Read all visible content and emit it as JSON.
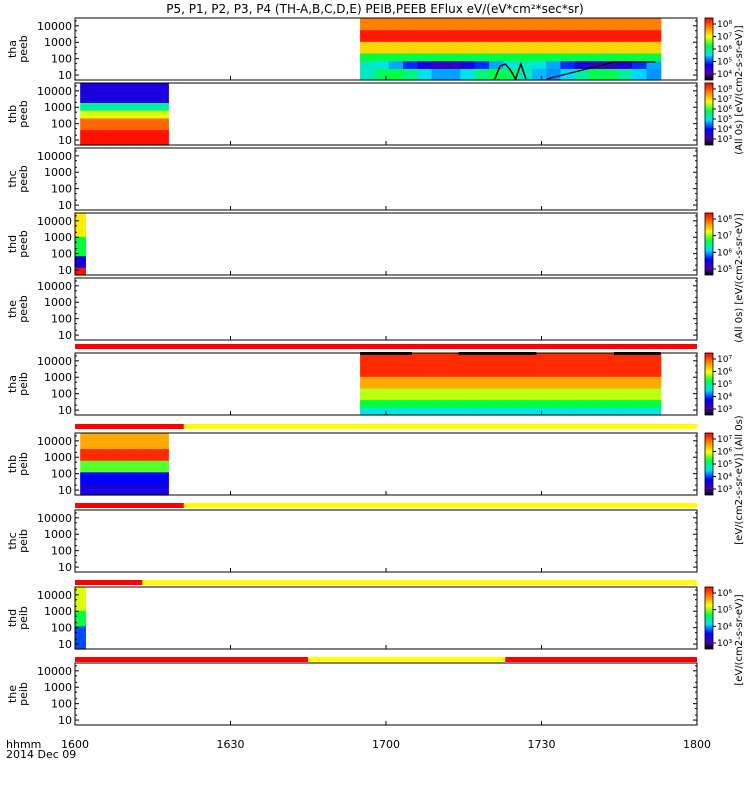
{
  "title": "P5, P1, P2, P3, P4 (TH-A,B,C,D,E) PEIB,PEEB EFlux eV/(eV*cm²*sec*sr)",
  "time_axis": {
    "label_lines": [
      "hhmm",
      "2014 Dec 09"
    ],
    "ticks": [
      "1600",
      "1630",
      "1700",
      "1730",
      "1800"
    ],
    "range_minutes": [
      0,
      120
    ]
  },
  "colors": {
    "bar_red": "#ff0000",
    "bar_yellow": "#ffff00",
    "panel_border": "#000000"
  },
  "colorbar_units": {
    "top_group": "(All 0s) [eV/(cm2-s-sr-eV)]",
    "middle_electron": "(All 0s) [eV/(cm2-s-sr-eV)]",
    "ion_group": "[eV/(cm2-s-sr-eV)] (All 0s)",
    "lower_ion": "[eV/(cm2-s-sr-eV)]"
  },
  "chart_data": [
    {
      "type": "heatmap",
      "probe": "tha",
      "species": "peeb",
      "ylabel": [
        "tha",
        "peeb"
      ],
      "y_ticks": [
        "10000",
        "1000",
        "100",
        "10"
      ],
      "y_scale": "log",
      "ylim": [
        5,
        30000
      ],
      "data_span_minutes": [
        55,
        113
      ],
      "colorbar_ticks": [
        "10⁸",
        "10⁷",
        "10⁶",
        "10⁵",
        "10⁴"
      ],
      "profile": "electron_dense"
    },
    {
      "type": "heatmap",
      "probe": "thb",
      "species": "peeb",
      "ylabel": [
        "thb",
        "peeb"
      ],
      "y_ticks": [
        "10000",
        "1000",
        "100",
        "10"
      ],
      "y_scale": "log",
      "ylim": [
        5,
        30000
      ],
      "data_span_minutes": [
        1,
        18
      ],
      "colorbar_ticks": [
        "10⁸",
        "10⁷",
        "10⁶",
        "10⁵",
        "10⁴",
        "10³"
      ],
      "profile": "electron_b"
    },
    {
      "type": "heatmap",
      "probe": "thc",
      "species": "peeb",
      "ylabel": [
        "thc",
        "peeb"
      ],
      "y_ticks": [
        "10000",
        "1000",
        "100",
        "10"
      ],
      "y_scale": "log",
      "ylim": [
        5,
        30000
      ],
      "data_span_minutes": null,
      "colorbar_ticks": [],
      "profile": "empty"
    },
    {
      "type": "heatmap",
      "probe": "thd",
      "species": "peeb",
      "ylabel": [
        "thd",
        "peeb"
      ],
      "y_ticks": [
        "10000",
        "1000",
        "100",
        "10"
      ],
      "y_scale": "log",
      "ylim": [
        5,
        30000
      ],
      "data_span_minutes": [
        0,
        2
      ],
      "colorbar_ticks": [
        "10⁸",
        "10⁷",
        "10⁶",
        "10⁵"
      ],
      "profile": "narrow_d"
    },
    {
      "type": "heatmap",
      "probe": "the",
      "species": "peeb",
      "ylabel": [
        "the",
        "peeb"
      ],
      "y_ticks": [
        "10000",
        "1000",
        "100",
        "10"
      ],
      "y_scale": "log",
      "ylim": [
        5,
        30000
      ],
      "data_span_minutes": null,
      "colorbar_ticks": [],
      "profile": "empty"
    },
    {
      "type": "heatmap",
      "probe": "tha",
      "species": "peib",
      "ylabel": [
        "tha",
        "peib"
      ],
      "y_ticks": [
        "10000",
        "1000",
        "100",
        "10"
      ],
      "y_scale": "log",
      "ylim": [
        5,
        30000
      ],
      "data_span_minutes": [
        55,
        113
      ],
      "colorbar_ticks": [
        "10⁷",
        "10⁶",
        "10⁵",
        "10⁴",
        "10³"
      ],
      "profile": "ion_dense"
    },
    {
      "type": "heatmap",
      "probe": "thb",
      "species": "peib",
      "ylabel": [
        "thb",
        "peib"
      ],
      "y_ticks": [
        "10000",
        "1000",
        "100",
        "10"
      ],
      "y_scale": "log",
      "ylim": [
        5,
        30000
      ],
      "data_span_minutes": [
        1,
        18
      ],
      "colorbar_ticks": [
        "10⁷",
        "10⁶",
        "10⁵",
        "10⁴",
        "10³"
      ],
      "profile": "ion_b"
    },
    {
      "type": "heatmap",
      "probe": "thc",
      "species": "peib",
      "ylabel": [
        "thc",
        "peib"
      ],
      "y_ticks": [
        "10000",
        "1000",
        "100",
        "10"
      ],
      "y_scale": "log",
      "ylim": [
        5,
        30000
      ],
      "data_span_minutes": null,
      "colorbar_ticks": [],
      "profile": "empty"
    },
    {
      "type": "heatmap",
      "probe": "thd",
      "species": "peib",
      "ylabel": [
        "thd",
        "peib"
      ],
      "y_ticks": [
        "10000",
        "1000",
        "100",
        "10"
      ],
      "y_scale": "log",
      "ylim": [
        5,
        30000
      ],
      "data_span_minutes": [
        0,
        2
      ],
      "colorbar_ticks": [
        "10⁶",
        "10⁵",
        "10⁴",
        "10³"
      ],
      "profile": "narrow_d_ion"
    },
    {
      "type": "heatmap",
      "probe": "the",
      "species": "peib",
      "ylabel": [
        "the",
        "peib"
      ],
      "y_ticks": [
        "10000",
        "1000",
        "100",
        "10"
      ],
      "y_scale": "log",
      "ylim": [
        5,
        30000
      ],
      "data_span_minutes": null,
      "colorbar_ticks": [],
      "profile": "empty"
    }
  ],
  "status_bars": [
    {
      "after_panel": 4,
      "segments": [
        {
          "from": 0,
          "to": 120,
          "color": "red"
        }
      ]
    },
    {
      "after_panel": 5,
      "segments": [
        {
          "from": 0,
          "to": 21,
          "color": "red"
        },
        {
          "from": 21,
          "to": 120,
          "color": "yellow"
        }
      ]
    },
    {
      "after_panel": 6,
      "segments": [
        {
          "from": 0,
          "to": 21,
          "color": "red"
        },
        {
          "from": 21,
          "to": 120,
          "color": "yellow"
        }
      ]
    },
    {
      "after_panel": 7,
      "segments": [
        {
          "from": 0,
          "to": 13,
          "color": "red"
        },
        {
          "from": 13,
          "to": 120,
          "color": "yellow"
        }
      ]
    },
    {
      "after_panel": 8,
      "segments": [
        {
          "from": 0,
          "to": 45,
          "color": "red"
        },
        {
          "from": 45,
          "to": 83,
          "color": "yellow"
        },
        {
          "from": 83,
          "to": 120,
          "color": "red"
        }
      ]
    }
  ]
}
